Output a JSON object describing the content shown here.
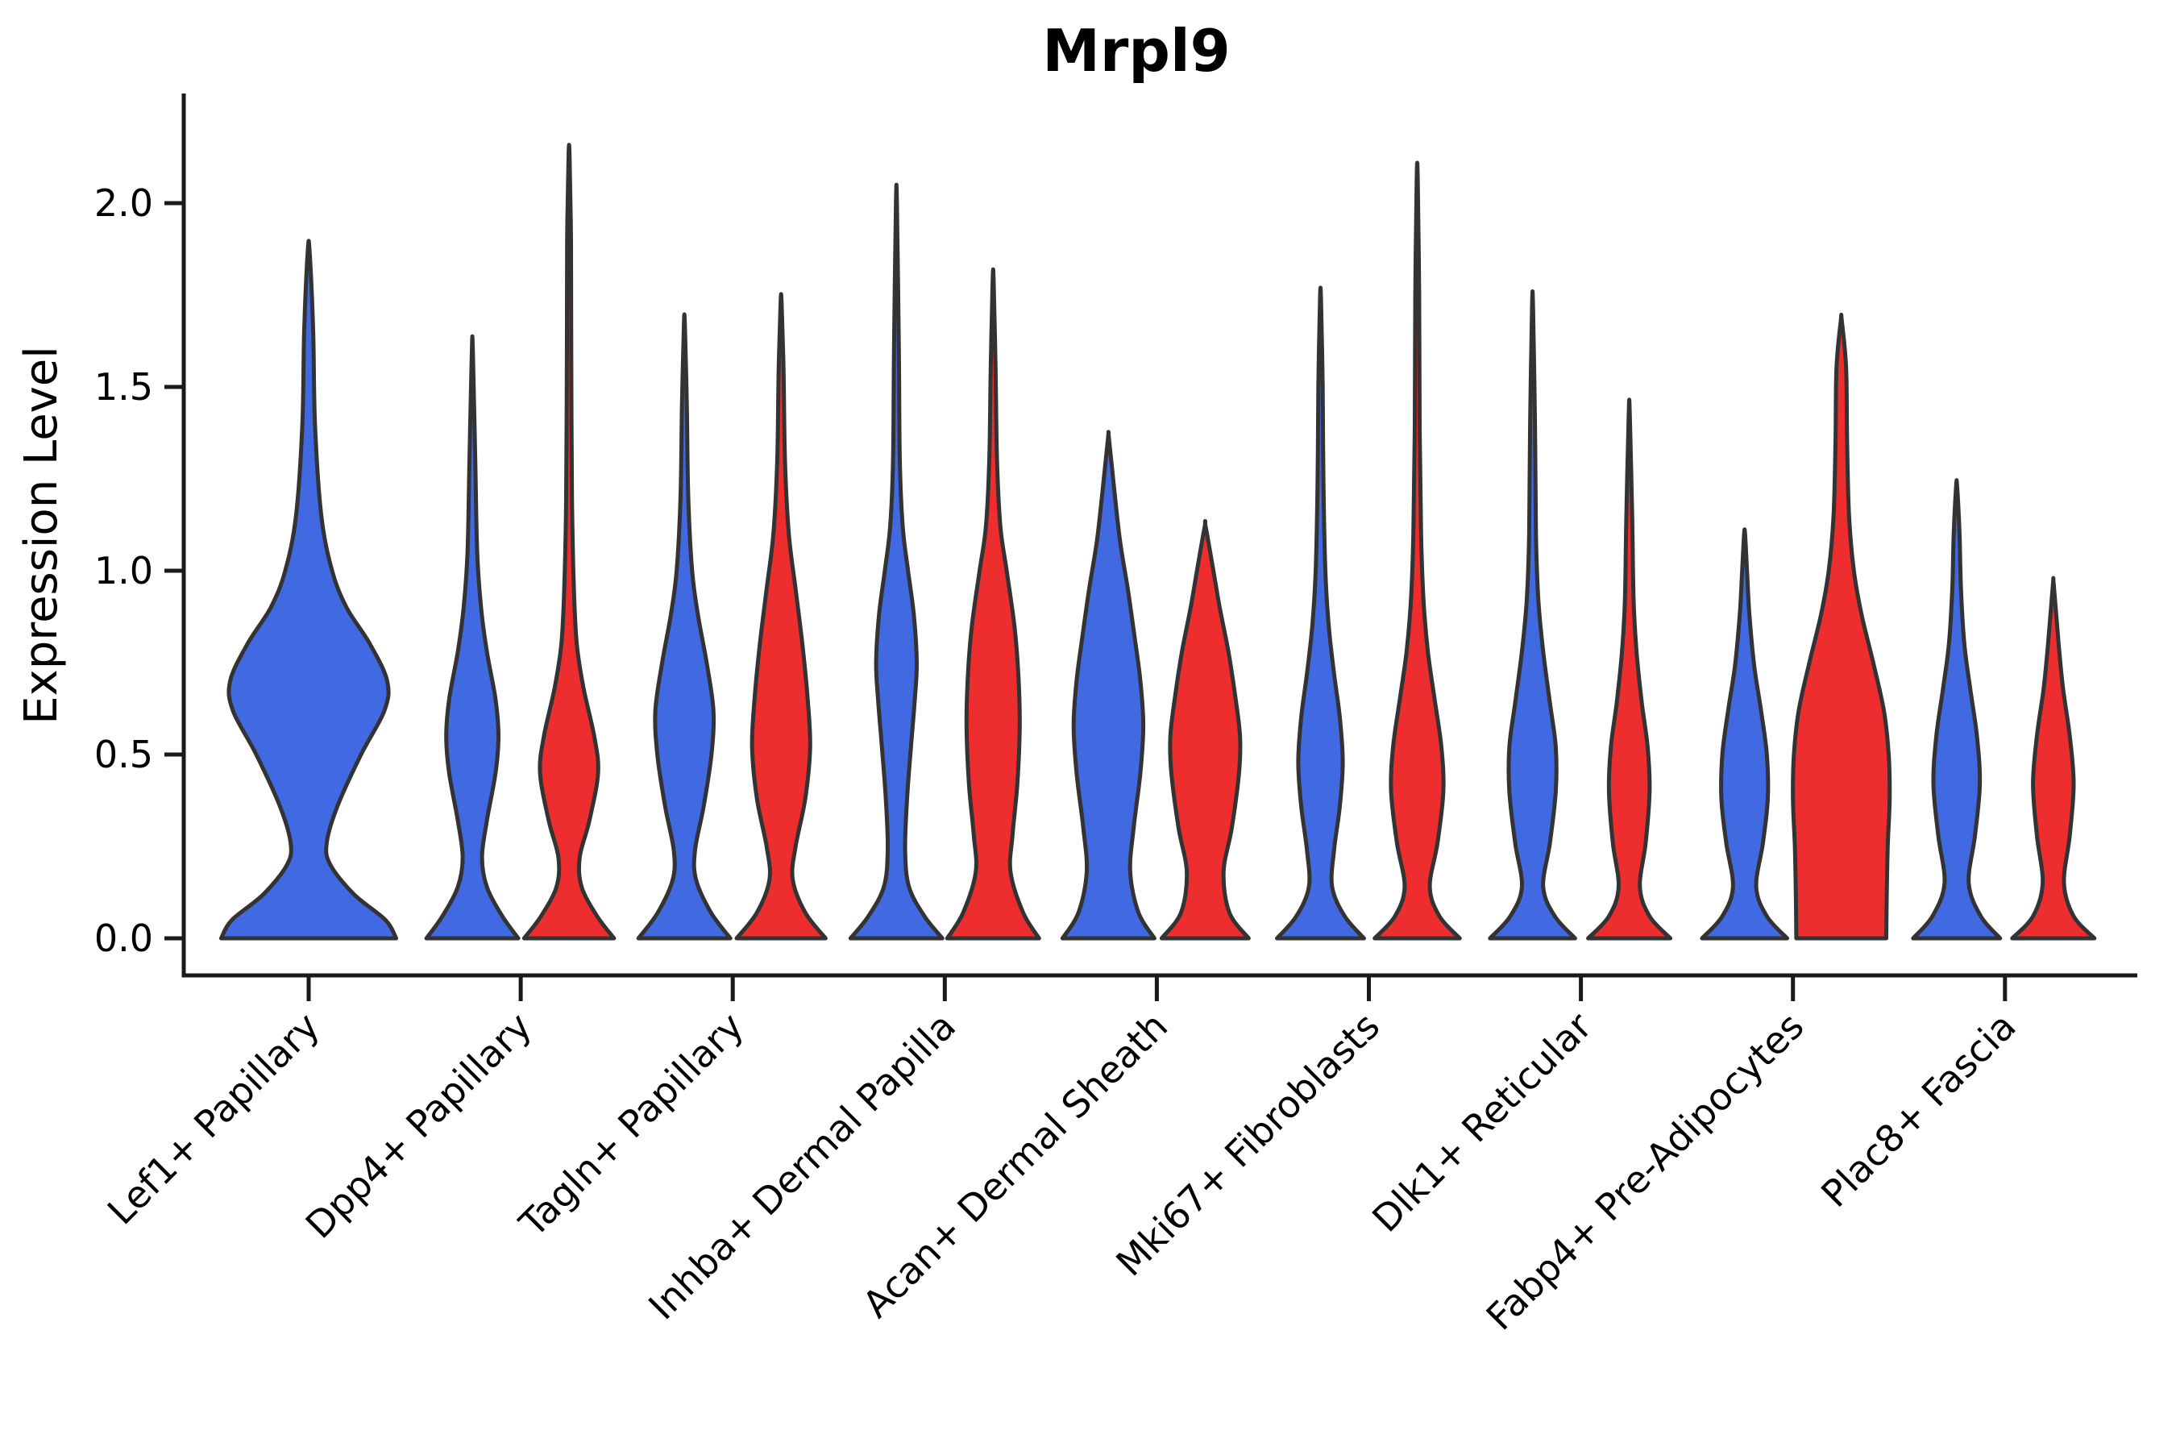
{
  "page": {
    "background": "#ffffff",
    "axis_color": "#1a1a1a",
    "violin_outline_color": "#333333"
  },
  "chart_data": {
    "type": "violin",
    "title": "Mrpl9",
    "xlabel": "",
    "ylabel": "Expression Level",
    "yticks": [
      0.0,
      0.5,
      1.0,
      1.5,
      2.0
    ],
    "ylim": [
      -0.1,
      2.3
    ],
    "grid": false,
    "legend": "none",
    "split_colors": {
      "blue": "#4169E1",
      "red": "#EE2E2E"
    },
    "categories": [
      "Lef1+ Papillary",
      "Dpp4+ Papillary",
      "Tagln+ Papillary",
      "Inhba+ Dermal Papilla",
      "Acan+ Dermal Sheath",
      "Mki67+ Fibroblasts",
      "Dlk1+ Reticular",
      "Fabp4+ Pre-Adipocytes",
      "Plac8+ Fascia"
    ],
    "violins": [
      {
        "category": "Lef1+ Papillary",
        "split": "blue",
        "single": true,
        "max": 1.87,
        "profile": [
          [
            0,
            0.97
          ],
          [
            0.05,
            0.85
          ],
          [
            0.12,
            0.5
          ],
          [
            0.2,
            0.24
          ],
          [
            0.26,
            0.2
          ],
          [
            0.36,
            0.32
          ],
          [
            0.5,
            0.58
          ],
          [
            0.62,
            0.84
          ],
          [
            0.7,
            0.87
          ],
          [
            0.8,
            0.68
          ],
          [
            0.9,
            0.42
          ],
          [
            1.0,
            0.26
          ],
          [
            1.15,
            0.14
          ],
          [
            1.4,
            0.07
          ],
          [
            1.65,
            0.05
          ],
          [
            1.87,
            0.01
          ]
        ]
      },
      {
        "category": "Dpp4+ Papillary",
        "split": "blue",
        "single": false,
        "max": 1.6,
        "profile": [
          [
            0,
            0.95
          ],
          [
            0.06,
            0.62
          ],
          [
            0.14,
            0.3
          ],
          [
            0.22,
            0.2
          ],
          [
            0.32,
            0.3
          ],
          [
            0.45,
            0.48
          ],
          [
            0.55,
            0.54
          ],
          [
            0.65,
            0.48
          ],
          [
            0.78,
            0.3
          ],
          [
            0.9,
            0.18
          ],
          [
            1.05,
            0.1
          ],
          [
            1.3,
            0.06
          ],
          [
            1.6,
            0.01
          ]
        ]
      },
      {
        "category": "Dpp4+ Papillary",
        "split": "red",
        "single": false,
        "max": 2.13,
        "profile": [
          [
            0,
            0.93
          ],
          [
            0.06,
            0.58
          ],
          [
            0.14,
            0.26
          ],
          [
            0.22,
            0.22
          ],
          [
            0.32,
            0.42
          ],
          [
            0.45,
            0.6
          ],
          [
            0.55,
            0.52
          ],
          [
            0.68,
            0.3
          ],
          [
            0.8,
            0.16
          ],
          [
            0.95,
            0.1
          ],
          [
            1.2,
            0.06
          ],
          [
            1.6,
            0.045
          ],
          [
            1.9,
            0.04
          ],
          [
            2.13,
            0.01
          ]
        ]
      },
      {
        "category": "Tagln+ Papillary",
        "split": "blue",
        "single": false,
        "max": 1.67,
        "profile": [
          [
            0,
            0.95
          ],
          [
            0.07,
            0.55
          ],
          [
            0.16,
            0.24
          ],
          [
            0.24,
            0.22
          ],
          [
            0.36,
            0.4
          ],
          [
            0.5,
            0.56
          ],
          [
            0.62,
            0.6
          ],
          [
            0.75,
            0.46
          ],
          [
            0.88,
            0.28
          ],
          [
            1.0,
            0.16
          ],
          [
            1.2,
            0.08
          ],
          [
            1.45,
            0.05
          ],
          [
            1.67,
            0.01
          ]
        ]
      },
      {
        "category": "Tagln+ Papillary",
        "split": "red",
        "single": false,
        "max": 1.73,
        "profile": [
          [
            0,
            0.92
          ],
          [
            0.07,
            0.5
          ],
          [
            0.16,
            0.24
          ],
          [
            0.25,
            0.3
          ],
          [
            0.38,
            0.5
          ],
          [
            0.52,
            0.6
          ],
          [
            0.65,
            0.55
          ],
          [
            0.8,
            0.44
          ],
          [
            0.95,
            0.3
          ],
          [
            1.1,
            0.16
          ],
          [
            1.3,
            0.08
          ],
          [
            1.55,
            0.05
          ],
          [
            1.73,
            0.01
          ]
        ]
      },
      {
        "category": "Inhba+ Dermal Papilla",
        "split": "blue",
        "single": false,
        "max": 2.0,
        "profile": [
          [
            0,
            0.95
          ],
          [
            0.06,
            0.58
          ],
          [
            0.14,
            0.26
          ],
          [
            0.24,
            0.18
          ],
          [
            0.38,
            0.22
          ],
          [
            0.52,
            0.3
          ],
          [
            0.65,
            0.38
          ],
          [
            0.75,
            0.42
          ],
          [
            0.88,
            0.36
          ],
          [
            1.0,
            0.24
          ],
          [
            1.12,
            0.13
          ],
          [
            1.3,
            0.07
          ],
          [
            1.6,
            0.05
          ],
          [
            2.0,
            0.01
          ]
        ]
      },
      {
        "category": "Inhba+ Dermal Papilla",
        "split": "red",
        "single": false,
        "max": 1.79,
        "profile": [
          [
            0,
            0.95
          ],
          [
            0.07,
            0.62
          ],
          [
            0.18,
            0.36
          ],
          [
            0.28,
            0.4
          ],
          [
            0.42,
            0.5
          ],
          [
            0.58,
            0.55
          ],
          [
            0.72,
            0.52
          ],
          [
            0.85,
            0.44
          ],
          [
            1.0,
            0.28
          ],
          [
            1.12,
            0.15
          ],
          [
            1.3,
            0.08
          ],
          [
            1.55,
            0.05
          ],
          [
            1.79,
            0.01
          ]
        ]
      },
      {
        "category": "Acan+ Dermal Sheath",
        "split": "blue",
        "single": false,
        "max": 1.36,
        "profile": [
          [
            0,
            0.95
          ],
          [
            0.07,
            0.62
          ],
          [
            0.18,
            0.45
          ],
          [
            0.3,
            0.52
          ],
          [
            0.45,
            0.66
          ],
          [
            0.58,
            0.72
          ],
          [
            0.7,
            0.66
          ],
          [
            0.82,
            0.54
          ],
          [
            0.95,
            0.4
          ],
          [
            1.08,
            0.24
          ],
          [
            1.22,
            0.12
          ],
          [
            1.36,
            0.01
          ]
        ]
      },
      {
        "category": "Acan+ Dermal Sheath",
        "split": "red",
        "single": false,
        "max": 1.12,
        "profile": [
          [
            0,
            0.9
          ],
          [
            0.07,
            0.5
          ],
          [
            0.18,
            0.38
          ],
          [
            0.3,
            0.55
          ],
          [
            0.45,
            0.7
          ],
          [
            0.55,
            0.72
          ],
          [
            0.66,
            0.62
          ],
          [
            0.78,
            0.48
          ],
          [
            0.9,
            0.3
          ],
          [
            1.0,
            0.17
          ],
          [
            1.12,
            0.01
          ]
        ]
      },
      {
        "category": "Mki67+ Fibroblasts",
        "split": "blue",
        "single": false,
        "max": 1.74,
        "profile": [
          [
            0,
            0.9
          ],
          [
            0.06,
            0.5
          ],
          [
            0.14,
            0.24
          ],
          [
            0.24,
            0.28
          ],
          [
            0.36,
            0.4
          ],
          [
            0.48,
            0.46
          ],
          [
            0.6,
            0.4
          ],
          [
            0.72,
            0.28
          ],
          [
            0.85,
            0.17
          ],
          [
            1.0,
            0.1
          ],
          [
            1.25,
            0.06
          ],
          [
            1.5,
            0.045
          ],
          [
            1.74,
            0.01
          ]
        ]
      },
      {
        "category": "Mki67+ Fibroblasts",
        "split": "red",
        "single": false,
        "max": 2.07,
        "profile": [
          [
            0,
            0.88
          ],
          [
            0.06,
            0.46
          ],
          [
            0.14,
            0.26
          ],
          [
            0.26,
            0.42
          ],
          [
            0.4,
            0.54
          ],
          [
            0.52,
            0.5
          ],
          [
            0.65,
            0.36
          ],
          [
            0.78,
            0.22
          ],
          [
            0.92,
            0.13
          ],
          [
            1.1,
            0.08
          ],
          [
            1.4,
            0.05
          ],
          [
            1.75,
            0.04
          ],
          [
            2.07,
            0.01
          ]
        ]
      },
      {
        "category": "Dlk1+ Reticular",
        "split": "blue",
        "single": false,
        "max": 1.72,
        "profile": [
          [
            0,
            0.88
          ],
          [
            0.06,
            0.46
          ],
          [
            0.14,
            0.22
          ],
          [
            0.26,
            0.36
          ],
          [
            0.4,
            0.48
          ],
          [
            0.52,
            0.48
          ],
          [
            0.64,
            0.36
          ],
          [
            0.78,
            0.22
          ],
          [
            0.92,
            0.12
          ],
          [
            1.1,
            0.07
          ],
          [
            1.4,
            0.05
          ],
          [
            1.72,
            0.01
          ]
        ]
      },
      {
        "category": "Dlk1+ Reticular",
        "split": "red",
        "single": false,
        "max": 1.43,
        "profile": [
          [
            0,
            0.85
          ],
          [
            0.06,
            0.42
          ],
          [
            0.14,
            0.22
          ],
          [
            0.26,
            0.34
          ],
          [
            0.4,
            0.42
          ],
          [
            0.52,
            0.38
          ],
          [
            0.64,
            0.26
          ],
          [
            0.78,
            0.15
          ],
          [
            0.92,
            0.09
          ],
          [
            1.15,
            0.06
          ],
          [
            1.43,
            0.01
          ]
        ]
      },
      {
        "category": "Fabp4+ Pre-Adipocytes",
        "split": "blue",
        "single": false,
        "max": 1.1,
        "profile": [
          [
            0,
            0.88
          ],
          [
            0.06,
            0.46
          ],
          [
            0.14,
            0.24
          ],
          [
            0.26,
            0.38
          ],
          [
            0.38,
            0.48
          ],
          [
            0.5,
            0.46
          ],
          [
            0.62,
            0.34
          ],
          [
            0.74,
            0.2
          ],
          [
            0.88,
            0.1
          ],
          [
            1.0,
            0.05
          ],
          [
            1.1,
            0.01
          ]
        ]
      },
      {
        "category": "Fabp4+ Pre-Adipocytes",
        "split": "red",
        "single": false,
        "max": 1.68,
        "profile": [
          [
            0,
            0.93
          ],
          [
            0.12,
            0.94
          ],
          [
            0.25,
            0.96
          ],
          [
            0.38,
            1.0
          ],
          [
            0.5,
            0.98
          ],
          [
            0.62,
            0.88
          ],
          [
            0.75,
            0.66
          ],
          [
            0.88,
            0.42
          ],
          [
            1.0,
            0.26
          ],
          [
            1.15,
            0.16
          ],
          [
            1.35,
            0.12
          ],
          [
            1.55,
            0.1
          ],
          [
            1.68,
            0.01
          ]
        ]
      },
      {
        "category": "Plac8+ Fascia",
        "split": "blue",
        "single": false,
        "max": 1.23,
        "profile": [
          [
            0,
            0.9
          ],
          [
            0.06,
            0.5
          ],
          [
            0.15,
            0.25
          ],
          [
            0.28,
            0.38
          ],
          [
            0.42,
            0.48
          ],
          [
            0.55,
            0.42
          ],
          [
            0.68,
            0.28
          ],
          [
            0.8,
            0.16
          ],
          [
            0.95,
            0.09
          ],
          [
            1.1,
            0.06
          ],
          [
            1.23,
            0.01
          ]
        ]
      },
      {
        "category": "Plac8+ Fascia",
        "split": "red",
        "single": false,
        "max": 0.96,
        "profile": [
          [
            0,
            0.85
          ],
          [
            0.06,
            0.42
          ],
          [
            0.15,
            0.22
          ],
          [
            0.28,
            0.34
          ],
          [
            0.42,
            0.42
          ],
          [
            0.55,
            0.34
          ],
          [
            0.68,
            0.2
          ],
          [
            0.8,
            0.11
          ],
          [
            0.96,
            0.01
          ]
        ]
      }
    ]
  }
}
